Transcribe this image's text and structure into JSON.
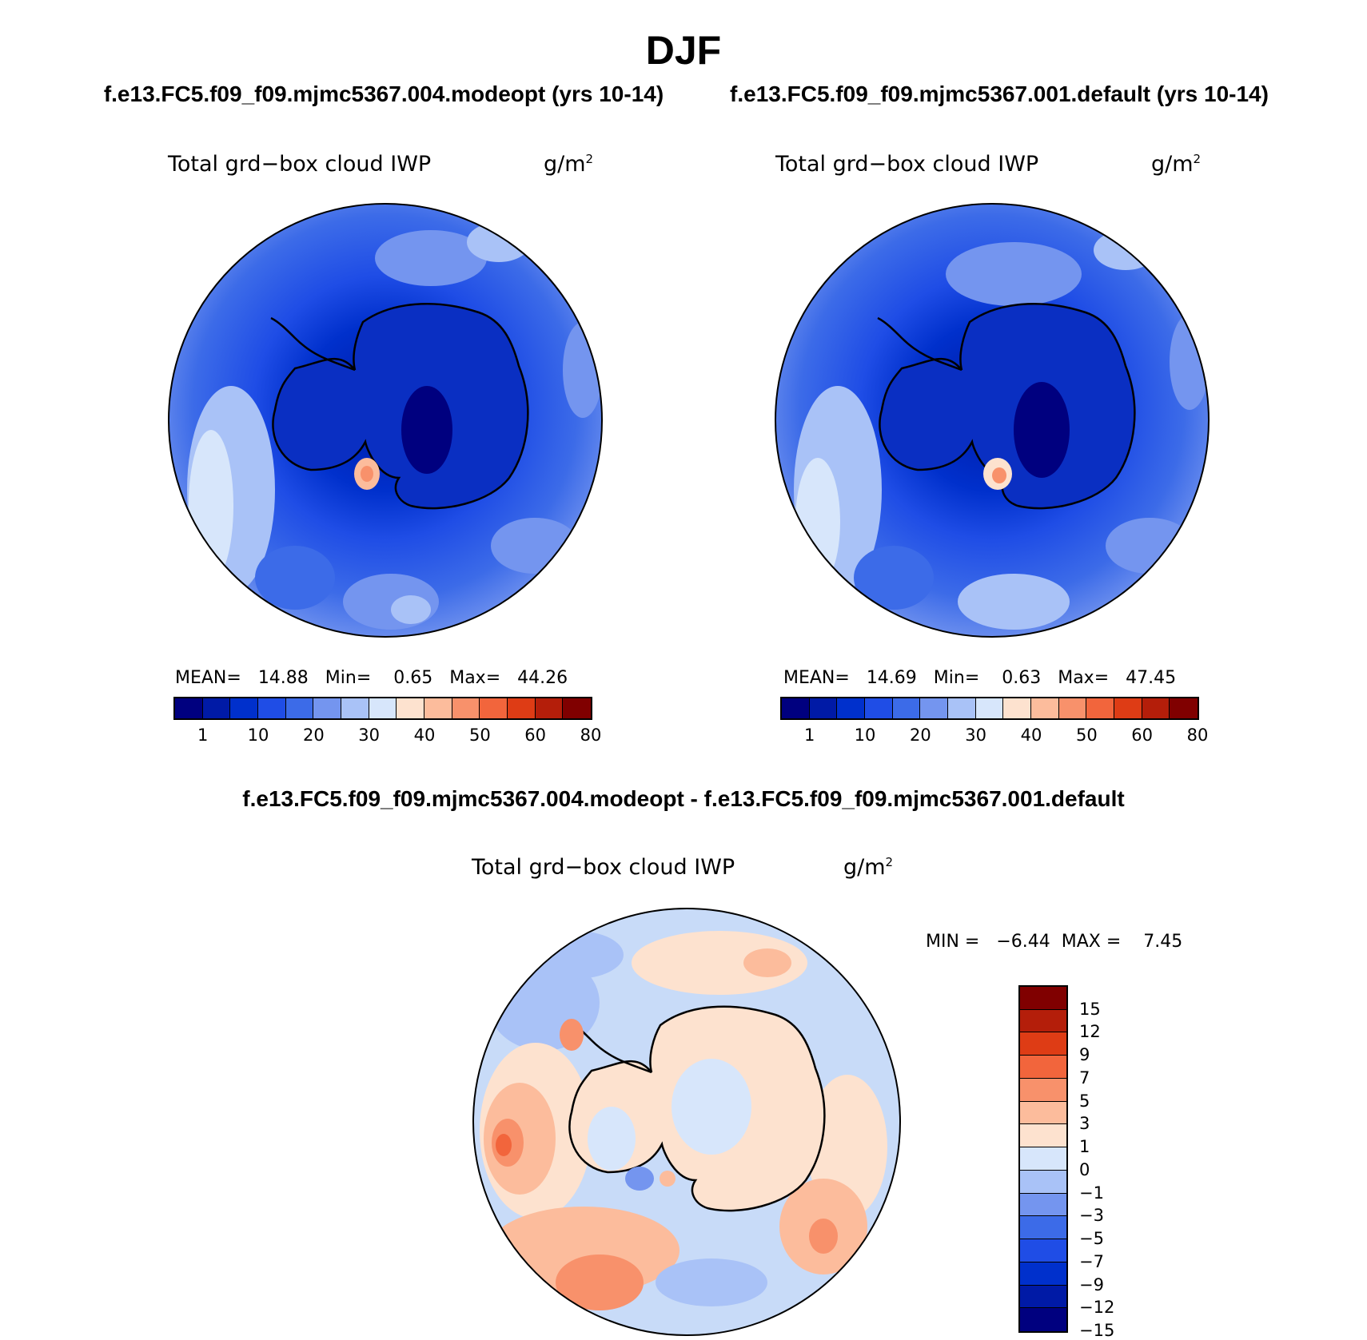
{
  "title": "DJF",
  "case_a": "f.e13.FC5.f09_f09.mjmc5367.004.modeopt (yrs 10-14)",
  "case_b": "f.e13.FC5.f09_f09.mjmc5367.001.default (yrs 10-14)",
  "diff_title": "f.e13.FC5.f09_f09.mjmc5367.004.modeopt - f.e13.FC5.f09_f09.mjmc5367.001.default",
  "variable": "Total grd−box cloud IWP",
  "units": "g/m",
  "units_exp": "2",
  "panel_a": {
    "mean_label": "MEAN=",
    "mean": "14.88",
    "min_label": "Min=",
    "min": "0.65",
    "max_label": "Max=",
    "max": "44.26"
  },
  "panel_b": {
    "mean_label": "MEAN=",
    "mean": "14.69",
    "min_label": "Min=",
    "min": "0.63",
    "max_label": "Max=",
    "max": "47.45"
  },
  "panel_c": {
    "min_label": "MIN =",
    "min": "−6.44",
    "max_label": "MAX =",
    "max": "7.45"
  },
  "colors": {
    "abs_scale": [
      "#00007f",
      "#001aa6",
      "#0030cc",
      "#1f4de6",
      "#3c6be8",
      "#7495ef",
      "#a9c2f7",
      "#d7e6fb",
      "#fde2cf",
      "#fcbc9c",
      "#f8916b",
      "#f2653c",
      "#de3c15",
      "#b41e0a",
      "#800000"
    ],
    "diff_scale_top_to_bottom": [
      "#800000",
      "#b41e0a",
      "#de3c15",
      "#f2653c",
      "#f8916b",
      "#fcbc9c",
      "#fde2cf",
      "#d7e6fb",
      "#a9c2f7",
      "#7495ef",
      "#3c6be8",
      "#1f4de6",
      "#0030cc",
      "#001aa6",
      "#00007f"
    ],
    "land": "#0a2fc2",
    "ocean_mid": "#3e6eea",
    "diff_ocean": "#c8dbf8"
  },
  "chart_data": [
    {
      "type": "heatmap",
      "projection": "south-polar-stereographic",
      "title": "f.e13.FC5.f09_f09.mjmc5367.004.modeopt (yrs 10-14)",
      "variable": "Total grd−box cloud IWP",
      "units": "g/m2",
      "mean": 14.88,
      "min": 0.65,
      "max": 44.26,
      "colorbar_ticks": [
        "1",
        "10",
        "20",
        "30",
        "40",
        "50",
        "60",
        "80"
      ]
    },
    {
      "type": "heatmap",
      "projection": "south-polar-stereographic",
      "title": "f.e13.FC5.f09_f09.mjmc5367.001.default (yrs 10-14)",
      "variable": "Total grd−box cloud IWP",
      "units": "g/m2",
      "mean": 14.69,
      "min": 0.63,
      "max": 47.45,
      "colorbar_ticks": [
        "1",
        "10",
        "20",
        "30",
        "40",
        "50",
        "60",
        "80"
      ]
    },
    {
      "type": "heatmap",
      "projection": "south-polar-stereographic",
      "title": "f.e13.FC5.f09_f09.mjmc5367.004.modeopt - f.e13.FC5.f09_f09.mjmc5367.001.default",
      "variable": "Total grd−box cloud IWP",
      "units": "g/m2",
      "min": -6.44,
      "max": 7.45,
      "colorbar_ticks": [
        "15",
        "12",
        "9",
        "7",
        "5",
        "3",
        "1",
        "0",
        "−1",
        "−3",
        "−5",
        "−7",
        "−9",
        "−12",
        "−15"
      ]
    }
  ]
}
